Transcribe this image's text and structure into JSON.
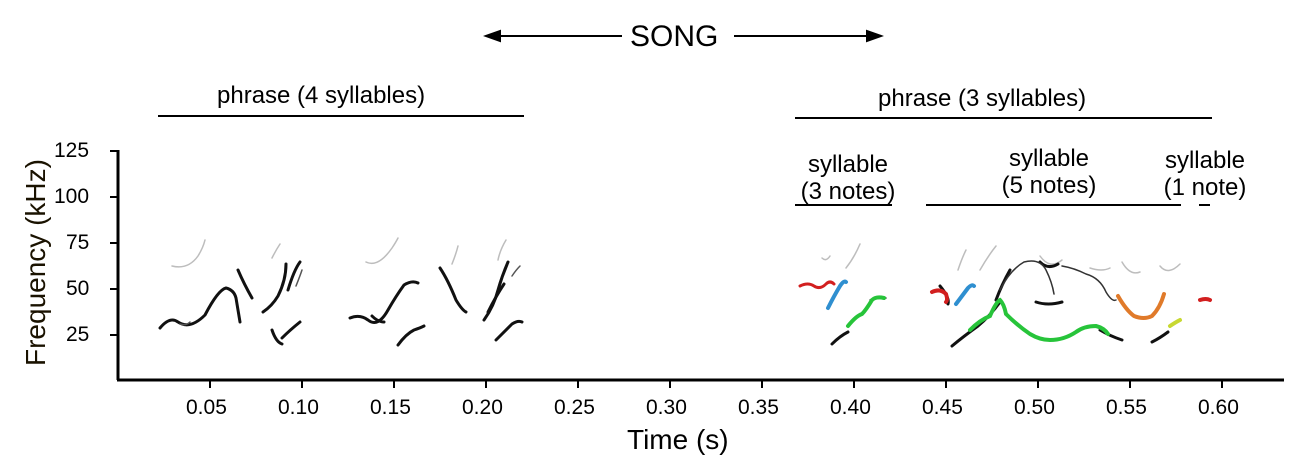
{
  "title": "SONG",
  "phrases": [
    {
      "label": "phrase (4 syllables)"
    },
    {
      "label": "phrase (3 syllables)"
    }
  ],
  "syllables": [
    {
      "line1": "syllable",
      "line2": "(3 notes)"
    },
    {
      "line1": "syllable",
      "line2": "(5 notes)"
    },
    {
      "line1": "syllable",
      "line2": "(1 note)"
    }
  ],
  "axes": {
    "ylabel": "Frequency (kHz)",
    "xlabel": "Time (s)",
    "yticks": [
      "25",
      "50",
      "75",
      "100",
      "125"
    ],
    "xticks": [
      "0.05",
      "0.10",
      "0.15",
      "0.20",
      "0.25",
      "0.30",
      "0.35",
      "0.40",
      "0.45",
      "0.50",
      "0.55",
      "0.60"
    ]
  },
  "colors": {
    "ink": "#000000",
    "note_red": "#d21f1f",
    "note_blue": "#2f8fd0",
    "note_green": "#27c43a",
    "note_orange": "#e07a2a",
    "note_yellow": "#c8d832"
  }
}
